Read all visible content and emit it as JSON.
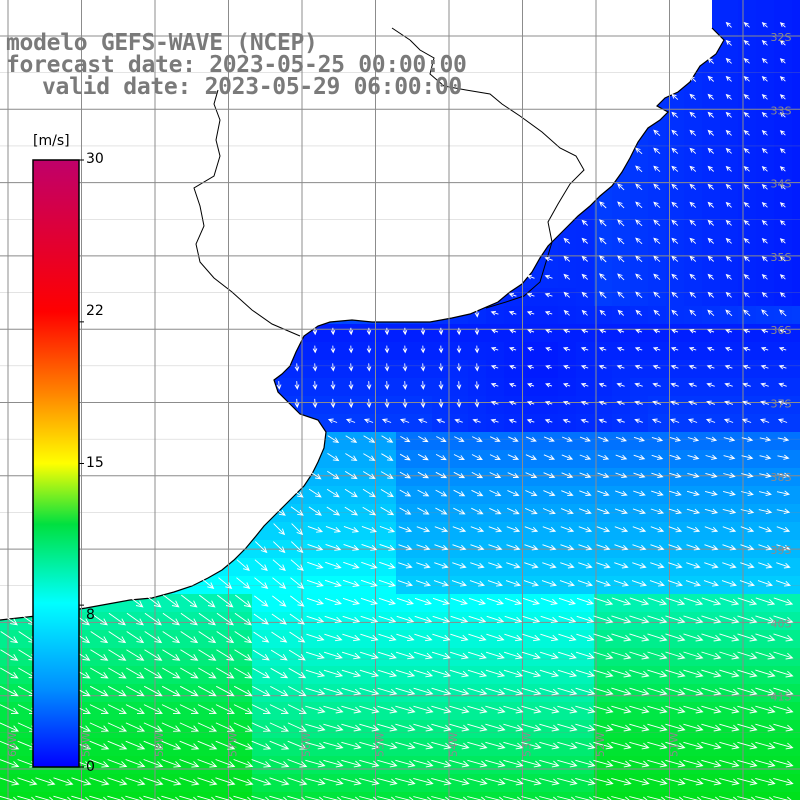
{
  "title": {
    "line1": "modelo GEFS-WAVE (NCEP)",
    "line2": "forecast date: 2023-05-25 00:00:00",
    "line3": "valid date: 2023-05-29 06:00:00"
  },
  "colorbar": {
    "units": "[m/s]",
    "min": 0,
    "max": 30,
    "ticks": [
      "30",
      "22",
      "15",
      "8",
      "0"
    ],
    "tick_values": [
      30,
      22,
      15,
      8,
      0
    ],
    "colors": [
      "#0000ff",
      "#00c0ff",
      "#00ffd0",
      "#00e000",
      "#ffff00",
      "#ff8000",
      "#ff0000",
      "#c00080"
    ]
  },
  "map": {
    "lat_labels": [
      "32S",
      "33S",
      "34S",
      "35S",
      "36S",
      "37S",
      "38S",
      "39S",
      "40S",
      "41S"
    ],
    "lon_labels": [
      "60W",
      "59W",
      "58W",
      "57W",
      "56W",
      "55W",
      "54W",
      "53W",
      "52W",
      "51W"
    ],
    "land_color": "#ffffff",
    "grid_color": "#8c8c8c",
    "arrow_color": "#ffffff"
  }
}
